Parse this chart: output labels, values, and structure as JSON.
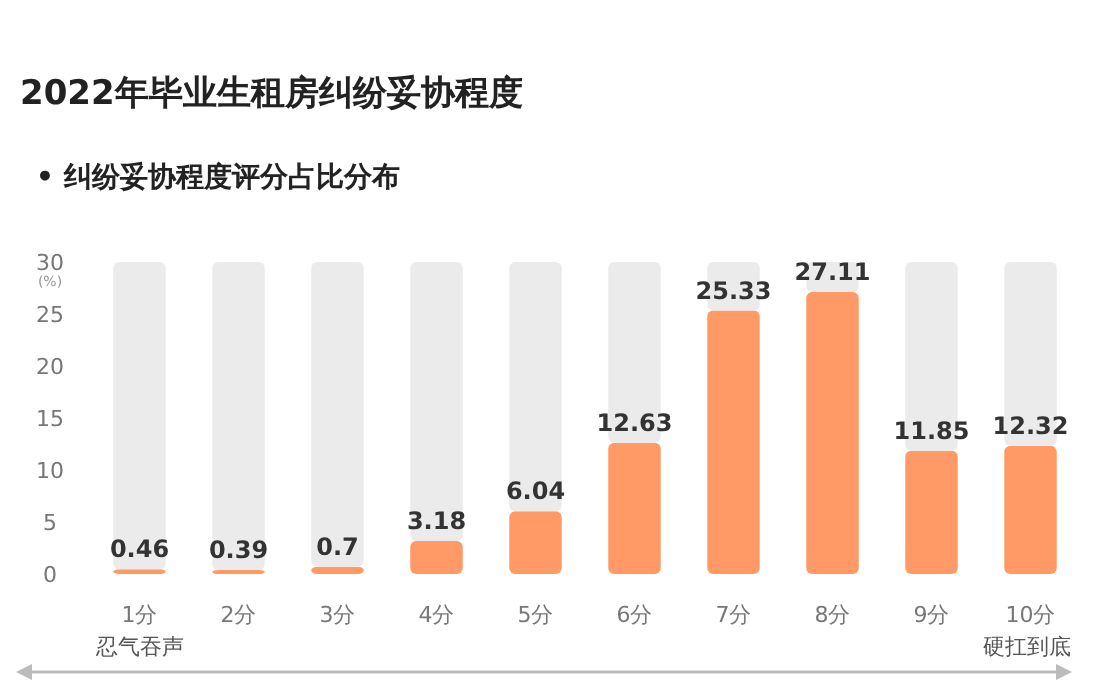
{
  "chart_data": {
    "type": "bar",
    "stacked": true,
    "title": "2022年毕业生租房纠纷妥协程度",
    "subtitle": "• 纠纷妥协程度评分占比分布",
    "ylabel": "(%)",
    "categories": [
      "1分",
      "2分",
      "3分",
      "4分",
      "5分",
      "6分",
      "7分",
      "8分",
      "9分",
      "10分"
    ],
    "series": [
      {
        "color": "#ff9a66",
        "values": [
          0.46,
          0.39,
          0.7,
          3.18,
          6.04,
          12.63,
          25.33,
          27.11,
          11.85,
          12.32
        ],
        "value_labels": [
          "0.46",
          "0.39",
          "0.7",
          "3.18",
          "6.04",
          "12.63",
          "25.33",
          "27.11",
          "11.85",
          "12.32"
        ]
      },
      {
        "color": "#ebebeb",
        "values": [
          29.54,
          29.61,
          29.3,
          26.82,
          23.96,
          17.37,
          4.67,
          2.89,
          18.15,
          17.68
        ]
      }
    ],
    "ylim": [
      0,
      30
    ],
    "yticks": [
      0,
      5,
      10,
      15,
      20,
      25,
      30
    ],
    "grid": false,
    "annotations": [
      "忍气吞声",
      "硬扛到底"
    ]
  }
}
